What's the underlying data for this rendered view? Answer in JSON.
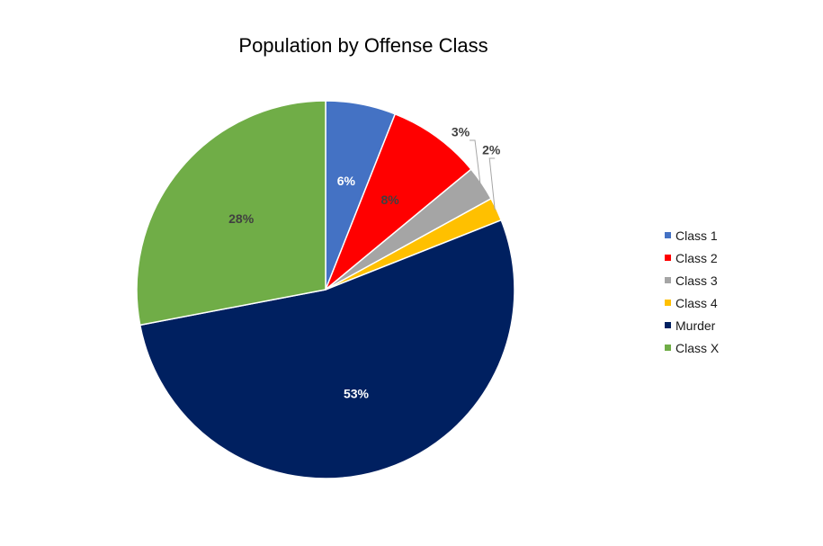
{
  "chart_data": {
    "type": "pie",
    "title": "Population by Offense Class",
    "slices": [
      {
        "name": "Class 1",
        "value": 6,
        "label": "6%",
        "color": "#4472C4",
        "label_color": "#ffffff",
        "label_pos": "inside"
      },
      {
        "name": "Class 2",
        "value": 8,
        "label": "8%",
        "color": "#FF0000",
        "label_color": "#404040",
        "label_pos": "inside"
      },
      {
        "name": "Class 3",
        "value": 3,
        "label": "3%",
        "color": "#A5A5A5",
        "label_color": "#404040",
        "label_pos": "outside"
      },
      {
        "name": "Class 4",
        "value": 2,
        "label": "2%",
        "color": "#FFC000",
        "label_color": "#404040",
        "label_pos": "outside"
      },
      {
        "name": "Murder",
        "value": 53,
        "label": "53%",
        "color": "#002060",
        "label_color": "#ffffff",
        "label_pos": "inside"
      },
      {
        "name": "Class X",
        "value": 28,
        "label": "28%",
        "color": "#70AD47",
        "label_color": "#404040",
        "label_pos": "inside"
      }
    ],
    "legend_position": "right"
  }
}
